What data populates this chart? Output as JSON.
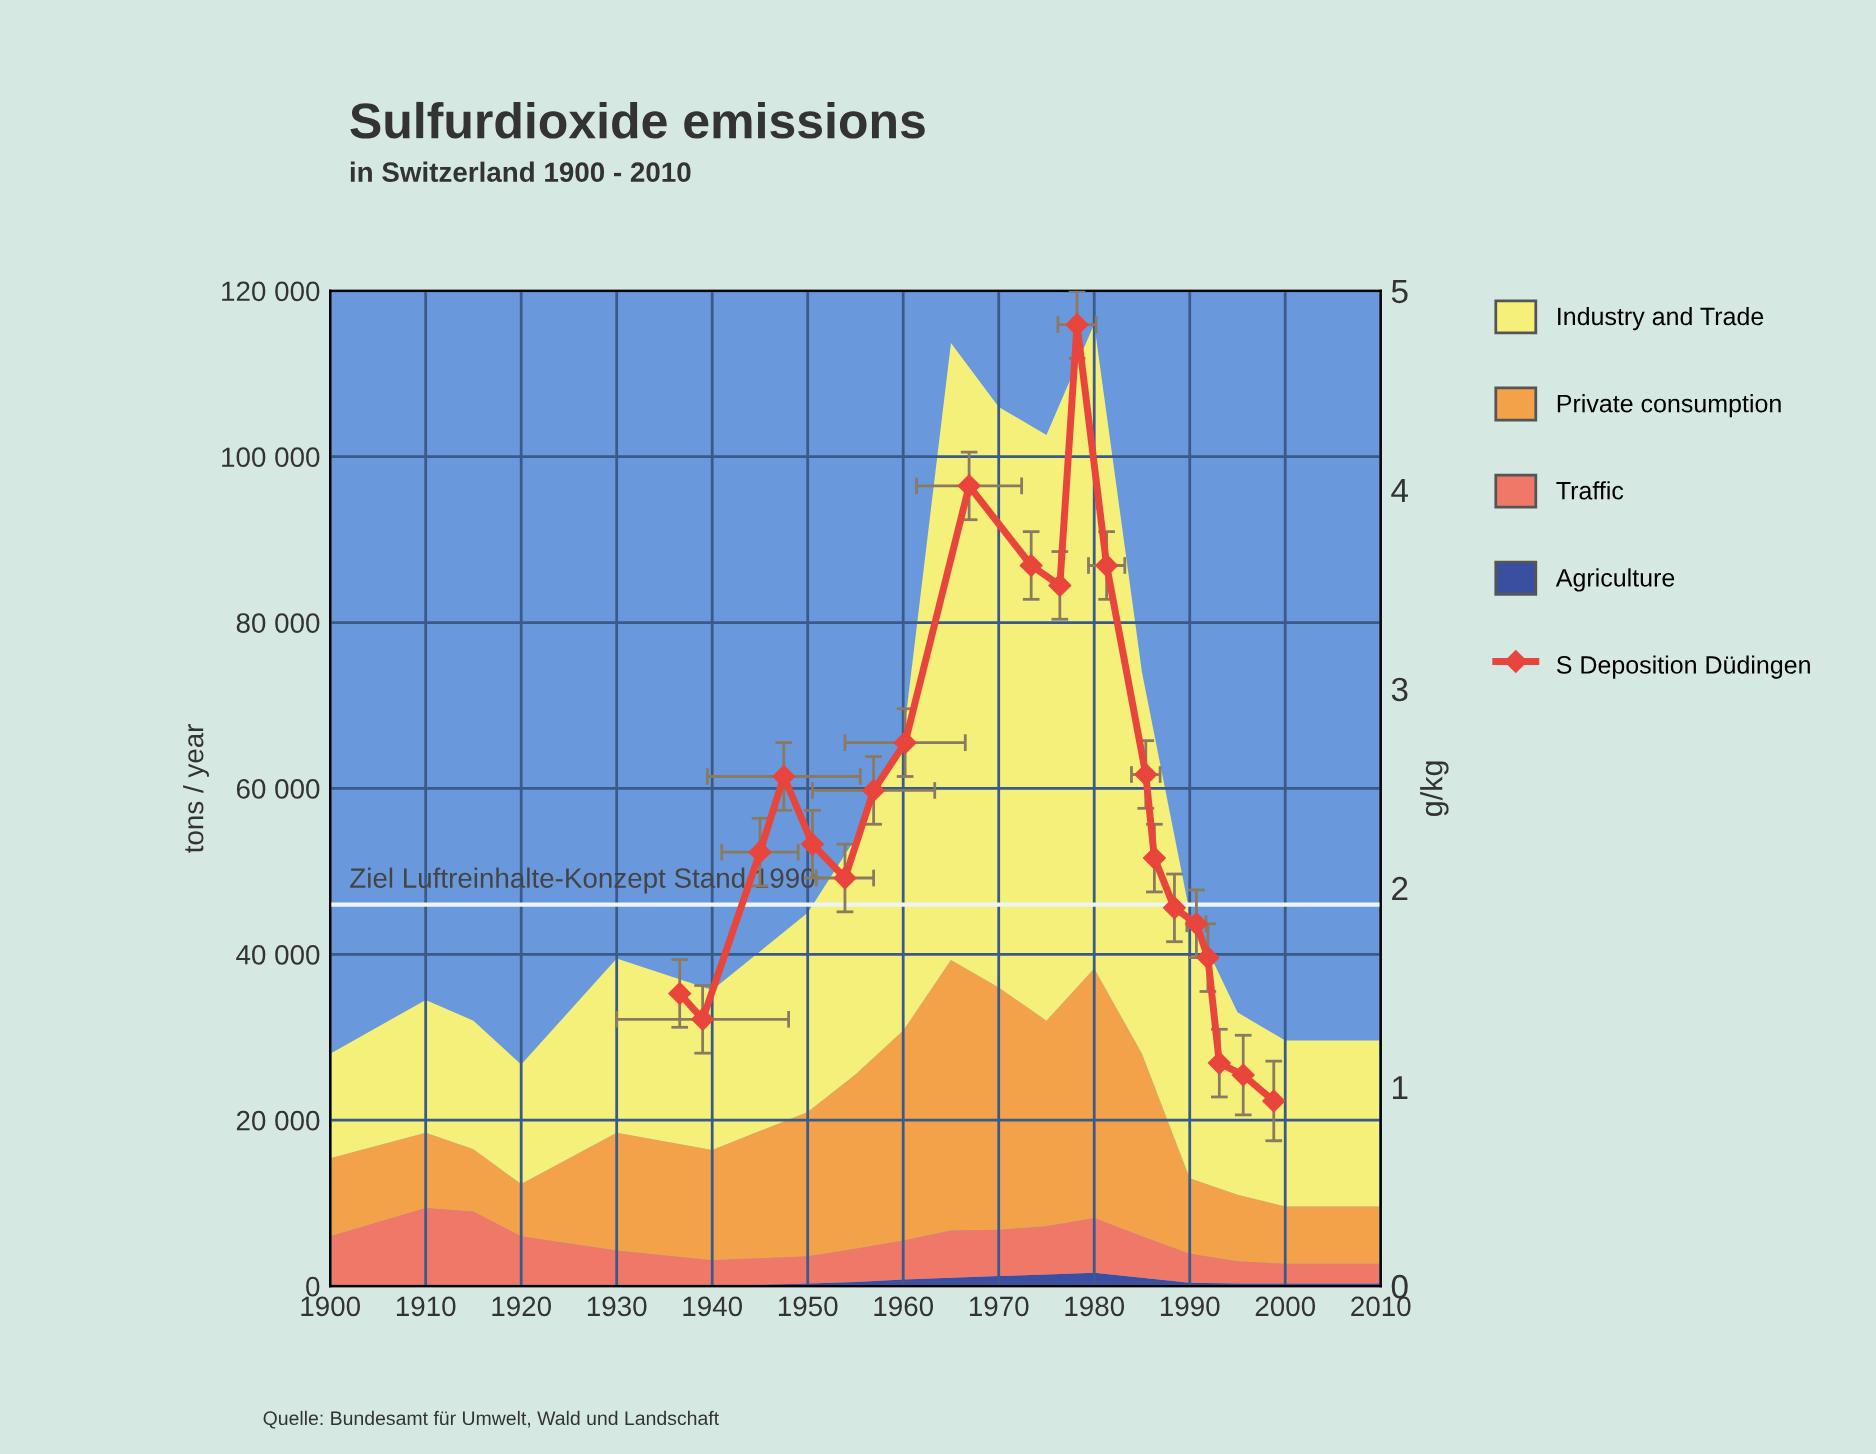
{
  "chart_data": {
    "type": "area",
    "stacked": true,
    "title": "Sulfurdioxide emissions",
    "subtitle": "in Switzerland 1900 - 2010",
    "ylabel": "tons / year",
    "y2label": "g/kg",
    "x": [
      1900,
      1910,
      1915,
      1920,
      1930,
      1940,
      1950,
      1955,
      1960,
      1965,
      1970,
      1975,
      1980,
      1985,
      1990,
      1995,
      2000,
      2010
    ],
    "series": [
      {
        "name": "Agriculture",
        "color": "#3a4fa0",
        "values": [
          0,
          0,
          0,
          0,
          0,
          0,
          300,
          500,
          800,
          1000,
          1200,
          1400,
          1600,
          1000,
          400,
          300,
          300,
          300
        ]
      },
      {
        "name": "Traffic",
        "color": "#f07868",
        "values": [
          6000,
          9400,
          9000,
          6000,
          4300,
          3100,
          3300,
          4000,
          4700,
          5700,
          5600,
          5800,
          6600,
          5000,
          3500,
          2700,
          2400,
          2400
        ]
      },
      {
        "name": "Private consumption",
        "color": "#f4a24a",
        "values": [
          9400,
          9100,
          7500,
          6300,
          14200,
          13300,
          17400,
          21000,
          25300,
          32600,
          29200,
          24800,
          30100,
          22000,
          9100,
          8000,
          6900,
          6900
        ]
      },
      {
        "name": "Industry and Trade",
        "color": "#f4f07a",
        "values": [
          12600,
          16000,
          15500,
          14400,
          21000,
          19300,
          24000,
          28500,
          35200,
          74400,
          70000,
          70600,
          77700,
          46000,
          32000,
          22000,
          20000,
          20000
        ]
      },
      {
        "name": "S Deposition Düdingen",
        "type": "line",
        "axis": "y2",
        "color": "#e8453c",
        "marker": "diamond",
        "x": [
          1936.6,
          1939,
          1945,
          1947.5,
          1950.5,
          1953.9,
          1956.9,
          1960.2,
          1966.9,
          1973.4,
          1976.4,
          1978.2,
          1981.3,
          1985.4,
          1986.3,
          1988.4,
          1990.7,
          1991.9,
          1993.1,
          1995.6,
          1998.8
        ],
        "values": [
          1.47,
          1.34,
          2.18,
          2.56,
          2.22,
          2.05,
          2.49,
          2.73,
          4.02,
          3.62,
          3.52,
          4.83,
          3.62,
          2.57,
          2.15,
          1.9,
          1.82,
          1.65,
          1.12,
          1.06,
          0.93
        ],
        "errors": [
          0.17,
          0.17,
          0.17,
          0.17,
          0.17,
          0.17,
          0.17,
          0.17,
          0.17,
          0.17,
          0.17,
          0.17,
          0.17,
          0.17,
          0.17,
          0.17,
          0.17,
          0.17,
          0.17,
          0.2,
          0.2
        ],
        "xerrors": [
          null,
          9,
          4,
          8,
          null,
          3,
          6.4,
          6.3,
          5.5,
          null,
          null,
          2,
          1.9,
          1.5,
          null,
          null,
          1,
          null,
          null,
          null,
          null
        ]
      }
    ],
    "xlim": [
      1900,
      2010
    ],
    "xticks": [
      1900,
      1910,
      1920,
      1930,
      1940,
      1950,
      1960,
      1970,
      1980,
      1990,
      2000,
      2010
    ],
    "ylim": [
      0,
      120000
    ],
    "yticks": [
      0,
      {
        "value": 20000,
        "label": "20 000"
      },
      {
        "value": 40000,
        "label": "40 000"
      },
      {
        "value": 60000,
        "label": "60 000"
      },
      {
        "value": 80000,
        "label": "80 000"
      },
      {
        "value": 100000,
        "label": "100 000"
      },
      {
        "value": 120000,
        "label": "120 000"
      }
    ],
    "y2lim": [
      0,
      5
    ],
    "y2ticks": [
      0,
      1,
      2,
      3,
      4,
      5
    ],
    "ref_lines": [
      {
        "axis": "y",
        "value": 46000,
        "label": "Ziel Luftreinhalte-Konzept Stand 1990",
        "color": "#eef4f4"
      }
    ],
    "grid": true,
    "legend": "right",
    "annotations": [
      "Quelle: Bundesamt für Umwelt, Wald und Landschaft"
    ]
  }
}
